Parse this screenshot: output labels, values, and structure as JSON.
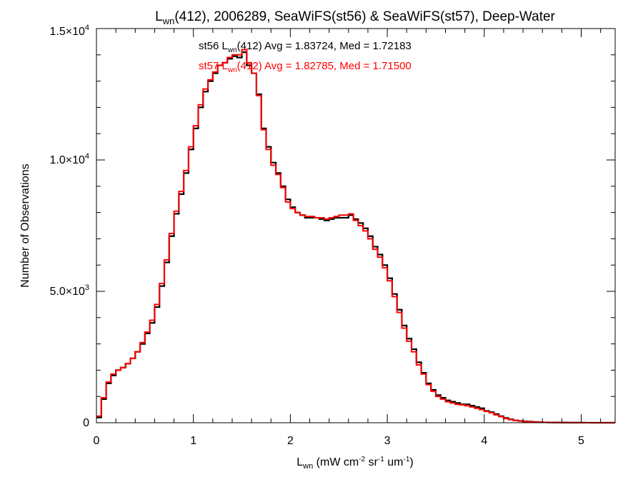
{
  "chart_data": {
    "type": "line",
    "title": {
      "pre": "L",
      "sub": "wn",
      "post": "(412), 2006289, SeaWiFS(st56) & SeaWiFS(st57), Deep-Water"
    },
    "xlabel": {
      "pre": "L",
      "sub": "wn",
      "mid1": " (mW cm",
      "sup1": "-2",
      "mid2": " sr",
      "sup2": "-1",
      "mid3": " um",
      "sup3": "-1",
      "post": ")"
    },
    "ylabel": "Number of Observations",
    "xlim": [
      0,
      5.35
    ],
    "ylim": [
      0,
      15000
    ],
    "xticks": [
      {
        "value": 0,
        "label": "0"
      },
      {
        "value": 1,
        "label": "1"
      },
      {
        "value": 2,
        "label": "2"
      },
      {
        "value": 3,
        "label": "3"
      },
      {
        "value": 4,
        "label": "4"
      },
      {
        "value": 5,
        "label": "5"
      }
    ],
    "yticks": [
      {
        "value": 0,
        "mant": "0",
        "exp": ""
      },
      {
        "value": 5000,
        "mant": "5.0×10",
        "exp": "3"
      },
      {
        "value": 10000,
        "mant": "1.0×10",
        "exp": "4"
      },
      {
        "value": 15000,
        "mant": "1.5×10",
        "exp": "4"
      }
    ],
    "grid": false,
    "legend_placement": "top-center",
    "series": [
      {
        "name": "st56",
        "color": "#000000",
        "label": {
          "pre": "st56 L",
          "sub": "wn",
          "post": "(412) Avg = 1.83724, Med = 1.72183"
        },
        "x": [
          0.0,
          0.05,
          0.1,
          0.15,
          0.2,
          0.25,
          0.3,
          0.35,
          0.4,
          0.45,
          0.5,
          0.55,
          0.6,
          0.65,
          0.7,
          0.75,
          0.8,
          0.85,
          0.9,
          0.95,
          1.0,
          1.05,
          1.1,
          1.15,
          1.2,
          1.25,
          1.3,
          1.35,
          1.4,
          1.45,
          1.5,
          1.55,
          1.6,
          1.65,
          1.7,
          1.75,
          1.8,
          1.85,
          1.9,
          1.95,
          2.0,
          2.05,
          2.1,
          2.15,
          2.2,
          2.25,
          2.3,
          2.35,
          2.4,
          2.45,
          2.5,
          2.55,
          2.6,
          2.65,
          2.7,
          2.75,
          2.8,
          2.85,
          2.9,
          2.95,
          3.0,
          3.05,
          3.1,
          3.15,
          3.2,
          3.25,
          3.3,
          3.35,
          3.4,
          3.45,
          3.5,
          3.55,
          3.6,
          3.65,
          3.7,
          3.75,
          3.8,
          3.85,
          3.9,
          3.95,
          4.0,
          4.05,
          4.1,
          4.15,
          4.2,
          4.25,
          4.3,
          4.35,
          4.4,
          4.45,
          4.5,
          4.55,
          4.6,
          4.65,
          4.7,
          4.75,
          4.8,
          4.85,
          4.9,
          4.95,
          5.0,
          5.05,
          5.1,
          5.15,
          5.2,
          5.25,
          5.3,
          5.35
        ],
        "y": [
          200,
          900,
          1500,
          1800,
          2000,
          2100,
          2250,
          2450,
          2700,
          3000,
          3400,
          3800,
          4400,
          5200,
          6100,
          7100,
          7950,
          8700,
          9500,
          10400,
          11200,
          12000,
          12600,
          13000,
          13300,
          13600,
          13700,
          13850,
          13950,
          13900,
          14100,
          13600,
          13300,
          12500,
          11200,
          10500,
          9900,
          9500,
          9000,
          8500,
          8200,
          8000,
          7900,
          7800,
          7800,
          7800,
          7750,
          7700,
          7750,
          7800,
          7800,
          7800,
          7900,
          7750,
          7600,
          7400,
          7100,
          6700,
          6400,
          6000,
          5500,
          4900,
          4300,
          3700,
          3200,
          2800,
          2300,
          1900,
          1500,
          1250,
          1050,
          950,
          850,
          800,
          750,
          700,
          700,
          650,
          600,
          550,
          450,
          400,
          330,
          250,
          180,
          130,
          90,
          70,
          50,
          40,
          30,
          20,
          15,
          12,
          10,
          8,
          6,
          5,
          4,
          3,
          2,
          2,
          1,
          1,
          1,
          0,
          0,
          0
        ]
      },
      {
        "name": "st57",
        "color": "#ff0000",
        "label": {
          "pre": "st57 L",
          "sub": "wn",
          "post": "(412) Avg = 1.82785, Med = 1.71500"
        },
        "x": [
          0.0,
          0.05,
          0.1,
          0.15,
          0.2,
          0.25,
          0.3,
          0.35,
          0.4,
          0.45,
          0.5,
          0.55,
          0.6,
          0.65,
          0.7,
          0.75,
          0.8,
          0.85,
          0.9,
          0.95,
          1.0,
          1.05,
          1.1,
          1.15,
          1.2,
          1.25,
          1.3,
          1.35,
          1.4,
          1.45,
          1.5,
          1.55,
          1.6,
          1.65,
          1.7,
          1.75,
          1.8,
          1.85,
          1.9,
          1.95,
          2.0,
          2.05,
          2.1,
          2.15,
          2.2,
          2.25,
          2.3,
          2.35,
          2.4,
          2.45,
          2.5,
          2.55,
          2.6,
          2.65,
          2.7,
          2.75,
          2.8,
          2.85,
          2.9,
          2.95,
          3.0,
          3.05,
          3.1,
          3.15,
          3.2,
          3.25,
          3.3,
          3.35,
          3.4,
          3.45,
          3.5,
          3.55,
          3.6,
          3.65,
          3.7,
          3.75,
          3.8,
          3.85,
          3.9,
          3.95,
          4.0,
          4.05,
          4.1,
          4.15,
          4.2,
          4.25,
          4.3,
          4.35,
          4.4,
          4.45,
          4.5,
          4.55,
          4.6,
          4.65,
          4.7,
          4.75,
          4.8,
          4.85,
          4.9,
          4.95,
          5.0,
          5.05,
          5.1,
          5.15,
          5.2,
          5.25,
          5.3,
          5.35
        ],
        "y": [
          250,
          950,
          1550,
          1850,
          2000,
          2100,
          2250,
          2450,
          2700,
          3050,
          3450,
          3900,
          4500,
          5300,
          6200,
          7200,
          8050,
          8800,
          9600,
          10500,
          11300,
          12100,
          12700,
          13050,
          13350,
          13600,
          13700,
          13900,
          14000,
          14000,
          14200,
          13700,
          13300,
          12450,
          11150,
          10400,
          9800,
          9450,
          8950,
          8400,
          8150,
          8000,
          7900,
          7850,
          7850,
          7800,
          7800,
          7750,
          7800,
          7850,
          7900,
          7900,
          7950,
          7700,
          7500,
          7300,
          7000,
          6600,
          6300,
          5900,
          5400,
          4800,
          4200,
          3600,
          3100,
          2700,
          2200,
          1850,
          1450,
          1200,
          1000,
          900,
          800,
          750,
          700,
          680,
          650,
          600,
          550,
          500,
          430,
          380,
          300,
          230,
          160,
          120,
          80,
          60,
          40,
          30,
          25,
          18,
          13,
          10,
          8,
          6,
          5,
          4,
          3,
          2,
          2,
          1,
          1,
          1,
          0,
          0,
          0,
          0
        ]
      }
    ]
  }
}
